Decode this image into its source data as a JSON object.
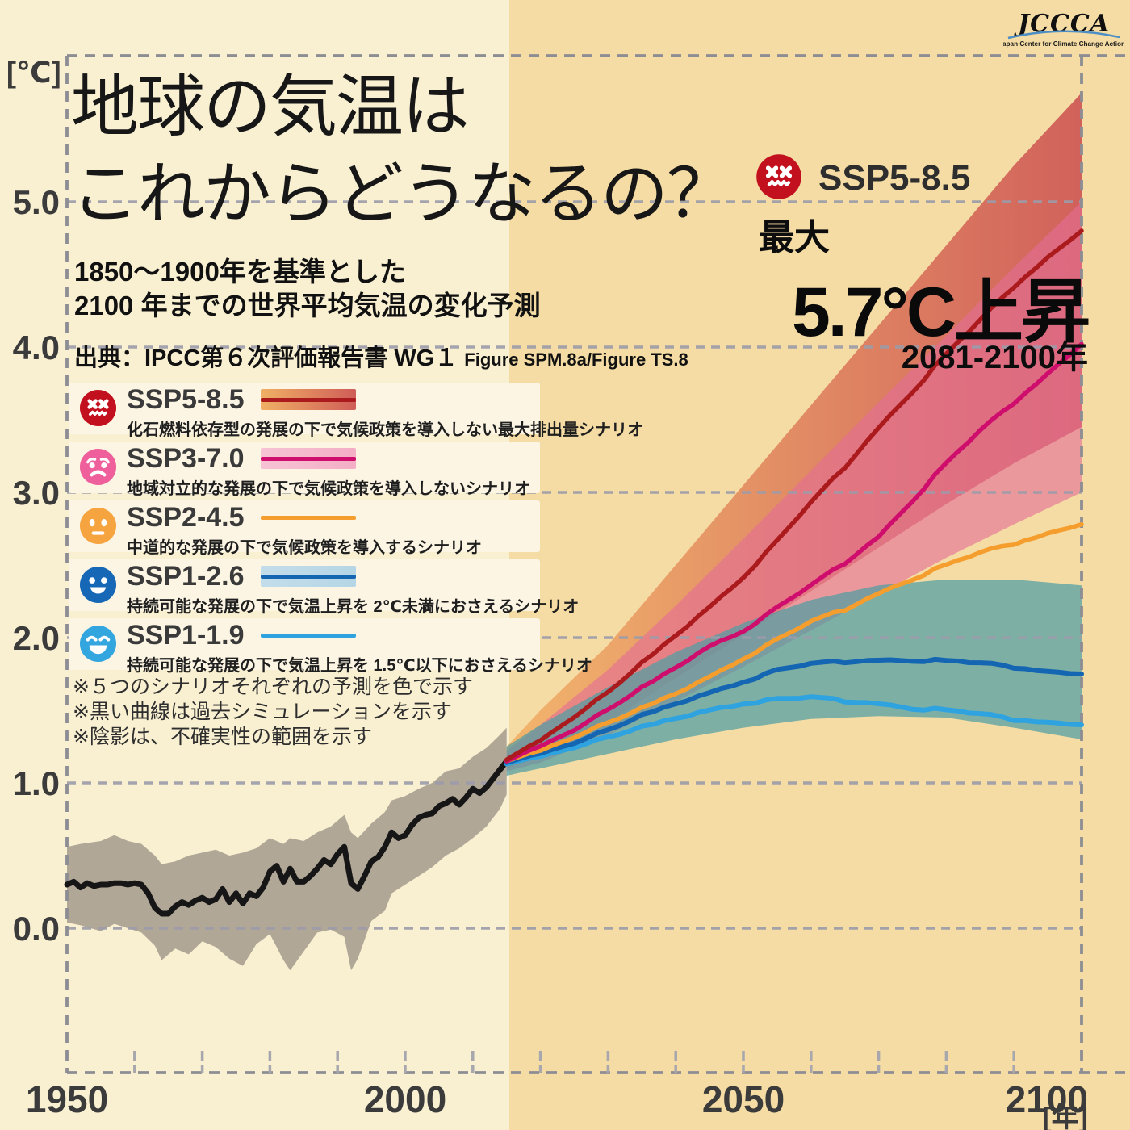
{
  "meta": {
    "brand": "JCCCA",
    "brand_caption": "Japan Center for Climate Change Actions"
  },
  "title": {
    "line1": "地球の気温は",
    "line2": "これからどうなるの？"
  },
  "subtitle": {
    "line1": "1850～1900年を基準とした",
    "line2": "2100 年までの世界平均気温の変化予測"
  },
  "source": {
    "prefix": "出典：IPCC第６次評価報告書 WG１",
    "figures": "Figure SPM.8a/Figure TS.8"
  },
  "callout": {
    "scenario": "SSP5-8.5",
    "max_label": "最大",
    "value": "5.7°C上昇",
    "period": "2081-2100年"
  },
  "legend": {
    "items": [
      {
        "id": "ssp585",
        "label": "SSP5-8.5",
        "desc": "化石燃料依存型の発展の下で気候政策を導入しない最大排出量シナリオ",
        "face": "dead",
        "face_color": "#c3101f",
        "line_color": "#ab1a1d",
        "band_colors": [
          "#f0b065",
          "#d05d58"
        ]
      },
      {
        "id": "ssp370",
        "label": "SSP3-7.0",
        "desc": "地域対立的な発展の下で気候政策を導入しないシナリオ",
        "face": "worried",
        "face_color": "#ee5f9b",
        "line_color": "#ce0d6d",
        "band_colors": [
          "#f6c3d4",
          "#f4aec6"
        ]
      },
      {
        "id": "ssp245",
        "label": "SSP2-4.5",
        "desc": "中道的な発展の下で気候政策を導入するシナリオ",
        "face": "neutral",
        "face_color": "#f6a440",
        "line_color": "#f59e2e",
        "band_colors": null
      },
      {
        "id": "ssp126",
        "label": "SSP1-2.6",
        "desc": "持続可能な発展の下で気温上昇を 2℃未満におさえるシナリオ",
        "face": "happy",
        "face_color": "#1667b6",
        "line_color": "#1566b2",
        "band_colors": [
          "#c3ddea",
          "#b5d6e6"
        ]
      },
      {
        "id": "ssp119",
        "label": "SSP1-1.9",
        "desc": "持続可能な発展の下で気温上昇を 1.5℃以下におさえるシナリオ",
        "face": "laugh",
        "face_color": "#33a6e0",
        "line_color": "#2fa3df",
        "band_colors": null
      }
    ]
  },
  "notes": {
    "lines": [
      "※５つのシナリオそれぞれの予測を色で示す",
      "※黒い曲線は過去シミュレーションを示す",
      "※陰影は、不確実性の範囲を示す"
    ]
  },
  "chart_data": {
    "type": "line",
    "title": "1850～1900年を基準とした2100年までの世界平均気温の変化予測",
    "x": {
      "label": "[年]",
      "range": [
        1950,
        2100
      ],
      "major_ticks": [
        1950,
        2000,
        2050,
        2100
      ],
      "minor_tick_step": 10
    },
    "y": {
      "label": "[℃]",
      "range": [
        -1,
        6
      ],
      "major_ticks": [
        5,
        4,
        3,
        2,
        1,
        0
      ],
      "tick_labels": [
        "5.0",
        "4.0",
        "3.0",
        "2.0",
        "1.0",
        "0.0"
      ],
      "grid": "dashed"
    },
    "projection_start_year": 2015,
    "annotation": {
      "scenario": "SSP5-8.5",
      "text": "最大5.7°C上昇",
      "period": "2081-2100年"
    },
    "series": [
      {
        "id": "hist",
        "name": "過去シミュレーション",
        "color": "#161616",
        "width": 7,
        "wiggle": false,
        "points": [
          [
            1950,
            0.3
          ],
          [
            1951,
            0.32
          ],
          [
            1952,
            0.28
          ],
          [
            1953,
            0.31
          ],
          [
            1954,
            0.29
          ],
          [
            1955,
            0.3
          ],
          [
            1956,
            0.3
          ],
          [
            1957,
            0.31
          ],
          [
            1958,
            0.31
          ],
          [
            1959,
            0.3
          ],
          [
            1960,
            0.31
          ],
          [
            1961,
            0.3
          ],
          [
            1962,
            0.24
          ],
          [
            1963,
            0.14
          ],
          [
            1964,
            0.1
          ],
          [
            1965,
            0.1
          ],
          [
            1966,
            0.15
          ],
          [
            1967,
            0.18
          ],
          [
            1968,
            0.16
          ],
          [
            1969,
            0.19
          ],
          [
            1970,
            0.21
          ],
          [
            1971,
            0.18
          ],
          [
            1972,
            0.2
          ],
          [
            1973,
            0.27
          ],
          [
            1974,
            0.18
          ],
          [
            1975,
            0.24
          ],
          [
            1976,
            0.17
          ],
          [
            1977,
            0.24
          ],
          [
            1978,
            0.22
          ],
          [
            1979,
            0.28
          ],
          [
            1980,
            0.39
          ],
          [
            1981,
            0.43
          ],
          [
            1982,
            0.32
          ],
          [
            1983,
            0.41
          ],
          [
            1984,
            0.32
          ],
          [
            1985,
            0.32
          ],
          [
            1986,
            0.36
          ],
          [
            1987,
            0.41
          ],
          [
            1988,
            0.47
          ],
          [
            1989,
            0.44
          ],
          [
            1990,
            0.51
          ],
          [
            1991,
            0.56
          ],
          [
            1992,
            0.31
          ],
          [
            1993,
            0.27
          ],
          [
            1994,
            0.36
          ],
          [
            1995,
            0.46
          ],
          [
            1996,
            0.49
          ],
          [
            1997,
            0.56
          ],
          [
            1998,
            0.66
          ],
          [
            1999,
            0.62
          ],
          [
            2000,
            0.64
          ],
          [
            2001,
            0.71
          ],
          [
            2002,
            0.76
          ],
          [
            2003,
            0.78
          ],
          [
            2004,
            0.79
          ],
          [
            2005,
            0.84
          ],
          [
            2006,
            0.86
          ],
          [
            2007,
            0.89
          ],
          [
            2008,
            0.85
          ],
          [
            2009,
            0.9
          ],
          [
            2010,
            0.96
          ],
          [
            2011,
            0.93
          ],
          [
            2012,
            0.97
          ],
          [
            2013,
            1.03
          ],
          [
            2014,
            1.09
          ],
          [
            2015,
            1.15
          ]
        ]
      },
      {
        "id": "ssp119",
        "name": "SSP1-1.9",
        "color": "#2fa3df",
        "width": 6,
        "wiggle": true,
        "points": [
          [
            2015,
            1.13
          ],
          [
            2020,
            1.19
          ],
          [
            2025,
            1.25
          ],
          [
            2030,
            1.31
          ],
          [
            2035,
            1.38
          ],
          [
            2040,
            1.45
          ],
          [
            2045,
            1.51
          ],
          [
            2050,
            1.55
          ],
          [
            2055,
            1.57
          ],
          [
            2060,
            1.58
          ],
          [
            2065,
            1.57
          ],
          [
            2070,
            1.55
          ],
          [
            2075,
            1.52
          ],
          [
            2080,
            1.5
          ],
          [
            2085,
            1.47
          ],
          [
            2090,
            1.44
          ],
          [
            2095,
            1.42
          ],
          [
            2100,
            1.4
          ]
        ]
      },
      {
        "id": "ssp126",
        "name": "SSP1-2.6",
        "color": "#1566b2",
        "width": 6,
        "wiggle": true,
        "points": [
          [
            2015,
            1.14
          ],
          [
            2020,
            1.21
          ],
          [
            2025,
            1.28
          ],
          [
            2030,
            1.36
          ],
          [
            2035,
            1.46
          ],
          [
            2040,
            1.55
          ],
          [
            2045,
            1.63
          ],
          [
            2050,
            1.7
          ],
          [
            2055,
            1.77
          ],
          [
            2060,
            1.81
          ],
          [
            2065,
            1.84
          ],
          [
            2070,
            1.85
          ],
          [
            2075,
            1.85
          ],
          [
            2080,
            1.84
          ],
          [
            2085,
            1.82
          ],
          [
            2090,
            1.8
          ],
          [
            2095,
            1.77
          ],
          [
            2100,
            1.75
          ]
        ]
      },
      {
        "id": "ssp245",
        "name": "SSP2-4.5",
        "color": "#f59e2e",
        "width": 5.5,
        "wiggle": true,
        "points": [
          [
            2015,
            1.15
          ],
          [
            2020,
            1.23
          ],
          [
            2025,
            1.32
          ],
          [
            2030,
            1.41
          ],
          [
            2035,
            1.51
          ],
          [
            2040,
            1.62
          ],
          [
            2045,
            1.74
          ],
          [
            2050,
            1.86
          ],
          [
            2055,
            1.98
          ],
          [
            2060,
            2.1
          ],
          [
            2065,
            2.2
          ],
          [
            2070,
            2.31
          ],
          [
            2075,
            2.41
          ],
          [
            2080,
            2.5
          ],
          [
            2085,
            2.58
          ],
          [
            2090,
            2.65
          ],
          [
            2095,
            2.72
          ],
          [
            2100,
            2.78
          ]
        ]
      },
      {
        "id": "ssp370",
        "name": "SSP3-7.0",
        "color": "#ce0d6d",
        "width": 5.5,
        "wiggle": true,
        "points": [
          [
            2015,
            1.15
          ],
          [
            2020,
            1.26
          ],
          [
            2025,
            1.37
          ],
          [
            2030,
            1.5
          ],
          [
            2035,
            1.65
          ],
          [
            2040,
            1.8
          ],
          [
            2045,
            1.95
          ],
          [
            2050,
            2.05
          ],
          [
            2055,
            2.2
          ],
          [
            2060,
            2.35
          ],
          [
            2065,
            2.52
          ],
          [
            2070,
            2.7
          ],
          [
            2075,
            2.95
          ],
          [
            2080,
            3.2
          ],
          [
            2085,
            3.42
          ],
          [
            2090,
            3.62
          ],
          [
            2095,
            3.82
          ],
          [
            2100,
            4.02
          ]
        ]
      },
      {
        "id": "ssp585",
        "name": "SSP5-8.5",
        "color": "#ab1a1d",
        "width": 5.5,
        "wiggle": true,
        "points": [
          [
            2015,
            1.16
          ],
          [
            2020,
            1.3
          ],
          [
            2025,
            1.46
          ],
          [
            2030,
            1.62
          ],
          [
            2035,
            1.82
          ],
          [
            2040,
            2.02
          ],
          [
            2045,
            2.22
          ],
          [
            2050,
            2.42
          ],
          [
            2055,
            2.66
          ],
          [
            2060,
            2.92
          ],
          [
            2065,
            3.18
          ],
          [
            2070,
            3.45
          ],
          [
            2075,
            3.7
          ],
          [
            2080,
            3.95
          ],
          [
            2085,
            4.18
          ],
          [
            2090,
            4.42
          ],
          [
            2095,
            4.62
          ],
          [
            2100,
            4.8
          ]
        ]
      }
    ],
    "bands": [
      {
        "series": "hist",
        "fill": "#a89e90",
        "opacity": 0.9,
        "points": [
          [
            1950,
            0.04,
            0.56
          ],
          [
            1952,
            0.02,
            0.58
          ],
          [
            1955,
            -0.02,
            0.6
          ],
          [
            1957,
            0.03,
            0.64
          ],
          [
            1959,
            0.0,
            0.6
          ],
          [
            1961,
            -0.03,
            0.58
          ],
          [
            1963,
            -0.12,
            0.5
          ],
          [
            1964,
            -0.22,
            0.44
          ],
          [
            1966,
            -0.14,
            0.46
          ],
          [
            1968,
            -0.18,
            0.5
          ],
          [
            1970,
            -0.09,
            0.52
          ],
          [
            1972,
            -0.13,
            0.54
          ],
          [
            1974,
            -0.21,
            0.5
          ],
          [
            1976,
            -0.26,
            0.52
          ],
          [
            1978,
            -0.11,
            0.55
          ],
          [
            1980,
            -0.04,
            0.62
          ],
          [
            1982,
            -0.22,
            0.58
          ],
          [
            1983,
            -0.29,
            0.62
          ],
          [
            1985,
            -0.16,
            0.6
          ],
          [
            1987,
            -0.03,
            0.66
          ],
          [
            1989,
            -0.01,
            0.7
          ],
          [
            1991,
            -0.06,
            0.78
          ],
          [
            1992,
            -0.29,
            0.66
          ],
          [
            1993,
            -0.21,
            0.62
          ],
          [
            1995,
            0.05,
            0.72
          ],
          [
            1997,
            0.12,
            0.8
          ],
          [
            1998,
            0.24,
            0.88
          ],
          [
            2000,
            0.3,
            0.91
          ],
          [
            2002,
            0.36,
            0.96
          ],
          [
            2004,
            0.42,
            1.0
          ],
          [
            2006,
            0.5,
            1.08
          ],
          [
            2008,
            0.55,
            1.1
          ],
          [
            2010,
            0.62,
            1.18
          ],
          [
            2012,
            0.7,
            1.24
          ],
          [
            2014,
            0.82,
            1.33
          ],
          [
            2015,
            0.92,
            1.38
          ]
        ]
      },
      {
        "series": "ssp585",
        "gradient": [
          "#f2b36a",
          "#cf5b57"
        ],
        "opacity": 0.95,
        "points": [
          [
            2015,
            1.1,
            1.25
          ],
          [
            2020,
            1.18,
            1.5
          ],
          [
            2030,
            1.42,
            1.95
          ],
          [
            2040,
            1.72,
            2.5
          ],
          [
            2050,
            2.02,
            3.05
          ],
          [
            2060,
            2.32,
            3.6
          ],
          [
            2070,
            2.62,
            4.15
          ],
          [
            2080,
            2.92,
            4.7
          ],
          [
            2090,
            3.2,
            5.25
          ],
          [
            2100,
            3.45,
            5.75
          ]
        ]
      },
      {
        "series": "ssp370",
        "fill": "#e46e96",
        "opacity": 0.62,
        "points": [
          [
            2015,
            1.08,
            1.22
          ],
          [
            2020,
            1.14,
            1.4
          ],
          [
            2030,
            1.33,
            1.78
          ],
          [
            2040,
            1.56,
            2.22
          ],
          [
            2050,
            1.8,
            2.68
          ],
          [
            2060,
            2.05,
            3.15
          ],
          [
            2070,
            2.3,
            3.62
          ],
          [
            2080,
            2.55,
            4.08
          ],
          [
            2090,
            2.78,
            4.55
          ],
          [
            2100,
            3.0,
            5.0
          ]
        ]
      },
      {
        "series": "ssp126",
        "fill": "#4f9ea4",
        "opacity": 0.72,
        "points": [
          [
            2015,
            1.05,
            1.25
          ],
          [
            2020,
            1.1,
            1.4
          ],
          [
            2030,
            1.2,
            1.66
          ],
          [
            2040,
            1.3,
            1.9
          ],
          [
            2050,
            1.38,
            2.1
          ],
          [
            2060,
            1.44,
            2.26
          ],
          [
            2070,
            1.46,
            2.36
          ],
          [
            2080,
            1.45,
            2.4
          ],
          [
            2090,
            1.38,
            2.4
          ],
          [
            2100,
            1.3,
            2.36
          ]
        ]
      }
    ]
  }
}
